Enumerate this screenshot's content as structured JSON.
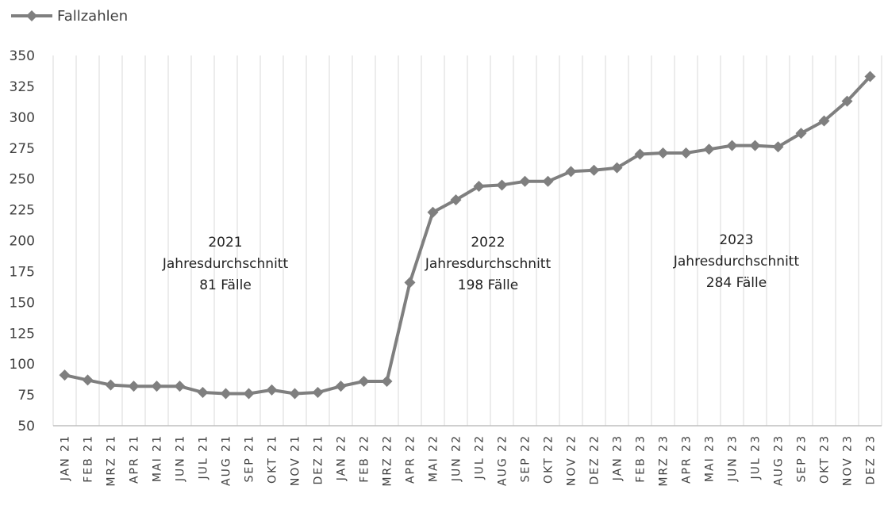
{
  "chart_data": {
    "type": "line",
    "categories": [
      "JAN 21",
      "FEB 21",
      "MRZ 21",
      "APR 21",
      "MAI 21",
      "JUN 21",
      "JUL 21",
      "AUG 21",
      "SEP 21",
      "OKT 21",
      "NOV 21",
      "DEZ 21",
      "JAN 22",
      "FEB 22",
      "MRZ 22",
      "APR 22",
      "MAI 22",
      "JUN 22",
      "JUL 22",
      "AUG 22",
      "SEP 22",
      "OKT 22",
      "NOV 22",
      "DEZ 22",
      "JAN 23",
      "FEB 23",
      "MRZ 23",
      "APR 23",
      "MAI 23",
      "JUN 23",
      "JUL 23",
      "AUG 23",
      "SEP 23",
      "OKT 23",
      "NOV 23",
      "DEZ 23"
    ],
    "series": [
      {
        "name": "Fallzahlen",
        "values": [
          91,
          87,
          83,
          82,
          82,
          82,
          77,
          76,
          76,
          79,
          76,
          77,
          82,
          86,
          86,
          166,
          223,
          233,
          244,
          245,
          248,
          248,
          256,
          257,
          259,
          270,
          271,
          271,
          274,
          277,
          277,
          276,
          287,
          297,
          313,
          333
        ],
        "color": "#7f7f7f",
        "marker": "diamond"
      }
    ],
    "ylim": [
      50,
      350
    ],
    "yticks": [
      50,
      75,
      100,
      125,
      150,
      175,
      200,
      225,
      250,
      275,
      300,
      325,
      350
    ],
    "grid": "vertical",
    "legend": "top-left",
    "annotations": [
      {
        "lines": [
          "2021",
          "Jahresdurchschnitt",
          "81 Fälle"
        ]
      },
      {
        "lines": [
          "2022",
          "Jahresdurchschnitt",
          "198 Fälle"
        ]
      },
      {
        "lines": [
          "2023",
          "Jahresdurchschnitt",
          "284 Fälle"
        ]
      }
    ],
    "title": "",
    "xlabel": "",
    "ylabel": ""
  }
}
